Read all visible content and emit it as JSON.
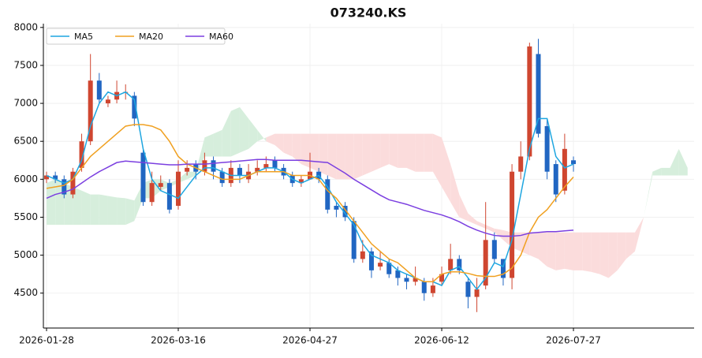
{
  "chart_data": {
    "type": "candlestick",
    "title": "073240.KS",
    "categories": [
      "2026-01-28",
      null,
      null,
      null,
      null,
      null,
      null,
      null,
      null,
      null,
      null,
      null,
      null,
      null,
      null,
      "2026-03-16",
      null,
      null,
      null,
      null,
      null,
      null,
      null,
      null,
      null,
      null,
      null,
      null,
      null,
      null,
      "2026-04-27",
      null,
      null,
      null,
      null,
      null,
      null,
      null,
      null,
      null,
      null,
      null,
      null,
      null,
      null,
      "2026-06-12",
      null,
      null,
      null,
      null,
      null,
      null,
      null,
      null,
      null,
      null,
      null,
      null,
      null,
      null,
      "2026-07-27",
      null,
      null,
      null,
      null,
      null,
      null,
      null,
      null,
      null,
      null,
      null,
      null,
      null
    ],
    "xlim": [
      -0.36,
      73.74
    ],
    "ylim": [
      4040,
      8050
    ],
    "yticks": [
      4500,
      5000,
      5500,
      6000,
      6500,
      7000,
      7500,
      8000
    ],
    "grid": true,
    "up_color": "#cf4630",
    "down_color": "#2166c2",
    "open": [
      6000,
      6050,
      6000,
      5800,
      6150,
      6500,
      7300,
      7000,
      7050,
      7150,
      7100,
      6350,
      5700,
      5900,
      5950,
      5650,
      6100,
      6200,
      6100,
      6250,
      6100,
      5950,
      6150,
      6000,
      6100,
      6150,
      6250,
      6150,
      6050,
      5950,
      6000,
      6100,
      6000,
      5650,
      5650,
      5450,
      4950,
      5050,
      4850,
      4900,
      4800,
      4700,
      4650,
      4650,
      4500,
      4650,
      4800,
      4950,
      4650,
      4450,
      4600,
      5200,
      4950,
      4700,
      6100,
      6300,
      7650,
      6700,
      6200,
      5850,
      6250,
      null,
      null,
      null,
      null,
      null,
      null,
      null,
      null,
      null,
      null,
      null,
      null,
      null
    ],
    "high": [
      6100,
      6100,
      6050,
      6150,
      6600,
      7650,
      7400,
      7100,
      7300,
      7250,
      7150,
      6400,
      6100,
      6050,
      6000,
      6250,
      6250,
      6250,
      6350,
      6300,
      6150,
      6250,
      6200,
      6200,
      6250,
      6300,
      6300,
      6200,
      6100,
      6050,
      6350,
      6150,
      6050,
      5700,
      5700,
      5500,
      5200,
      5100,
      5050,
      4950,
      4850,
      4750,
      4850,
      4700,
      4700,
      4850,
      5150,
      5000,
      4700,
      4700,
      5700,
      5300,
      4950,
      6200,
      6500,
      7800,
      7850,
      6800,
      6250,
      6600,
      6300,
      null,
      null,
      null,
      null,
      null,
      null,
      null,
      null,
      null,
      null,
      null,
      null,
      null
    ],
    "low": [
      5950,
      5950,
      5750,
      5750,
      6100,
      6450,
      7000,
      6950,
      7000,
      7050,
      6700,
      5650,
      5650,
      5850,
      5550,
      5600,
      6050,
      6000,
      6050,
      6000,
      5900,
      5900,
      5950,
      5950,
      6050,
      6100,
      6100,
      6000,
      5900,
      5900,
      6000,
      5950,
      5550,
      5500,
      5450,
      4900,
      4900,
      4700,
      4800,
      4700,
      4600,
      4550,
      4600,
      4400,
      4450,
      4600,
      4750,
      4750,
      4300,
      4250,
      4550,
      4900,
      4600,
      4550,
      6000,
      6250,
      6550,
      6000,
      5700,
      5800,
      6100,
      null,
      null,
      null,
      null,
      null,
      null,
      null,
      null,
      null,
      null,
      null,
      null,
      null
    ],
    "close": [
      6050,
      6000,
      5800,
      6100,
      6500,
      7300,
      7050,
      7050,
      7150,
      7150,
      6800,
      5700,
      5950,
      5950,
      5600,
      6100,
      6150,
      6100,
      6250,
      6100,
      5950,
      6150,
      6050,
      6100,
      6150,
      6200,
      6150,
      6050,
      5950,
      6000,
      6100,
      6000,
      5600,
      5600,
      5500,
      4950,
      5050,
      4800,
      4900,
      4750,
      4700,
      4650,
      4700,
      4500,
      4600,
      4750,
      4950,
      4800,
      4450,
      4550,
      5200,
      4950,
      4700,
      6100,
      6300,
      7750,
      6600,
      6100,
      5800,
      6400,
      6200,
      null,
      null,
      null,
      null,
      null,
      null,
      null,
      null,
      null,
      null,
      null,
      null,
      null
    ],
    "series": [
      {
        "name": "MA5",
        "color": "#1ea6e0",
        "values": [
          6050,
          6000,
          5950,
          6000,
          6250,
          6700,
          7000,
          7150,
          7100,
          7150,
          7050,
          6400,
          6000,
          5850,
          5800,
          5750,
          5900,
          6050,
          6150,
          6150,
          6100,
          6050,
          6050,
          6050,
          6100,
          6150,
          6150,
          6100,
          6000,
          5950,
          6000,
          6050,
          5900,
          5700,
          5550,
          5400,
          5150,
          5000,
          4950,
          4900,
          4800,
          4750,
          4700,
          4650,
          4650,
          4600,
          4800,
          4850,
          4700,
          4550,
          4700,
          4900,
          4850,
          5200,
          5800,
          6400,
          6800,
          6800,
          6300,
          6150,
          6200,
          null,
          null,
          null,
          null,
          null,
          null,
          null,
          null,
          null,
          null,
          null,
          null,
          null
        ]
      },
      {
        "name": "MA20",
        "color": "#f0a020",
        "values": [
          5880,
          5900,
          5920,
          6000,
          6150,
          6300,
          6400,
          6500,
          6600,
          6700,
          6720,
          6720,
          6700,
          6650,
          6500,
          6300,
          6200,
          6150,
          6100,
          6050,
          6000,
          6000,
          6000,
          6050,
          6100,
          6100,
          6100,
          6100,
          6050,
          6050,
          6050,
          6000,
          5850,
          5750,
          5600,
          5450,
          5300,
          5150,
          5050,
          4950,
          4900,
          4800,
          4700,
          4650,
          4650,
          4750,
          4780,
          4780,
          4760,
          4730,
          4720,
          4720,
          4750,
          4830,
          5000,
          5300,
          5500,
          5600,
          5750,
          5900,
          6030,
          null,
          null,
          null,
          null,
          null,
          null,
          null,
          null,
          null,
          null,
          null,
          null,
          null
        ]
      },
      {
        "name": "MA60",
        "color": "#7b3fe0",
        "values": [
          5750,
          5800,
          5830,
          5870,
          5950,
          6030,
          6100,
          6160,
          6220,
          6240,
          6230,
          6220,
          6210,
          6200,
          6190,
          6190,
          6200,
          6200,
          6200,
          6210,
          6220,
          6230,
          6240,
          6250,
          6260,
          6260,
          6250,
          6250,
          6250,
          6250,
          6240,
          6230,
          6220,
          6150,
          6080,
          6000,
          5930,
          5860,
          5790,
          5730,
          5700,
          5670,
          5630,
          5590,
          5560,
          5530,
          5490,
          5440,
          5380,
          5330,
          5290,
          5260,
          5250,
          5250,
          5260,
          5290,
          5300,
          5310,
          5310,
          5320,
          5330,
          null,
          null,
          null,
          null,
          null,
          null,
          null,
          null,
          null,
          null,
          null,
          null,
          null
        ]
      }
    ],
    "cloud": {
      "up_color": "#d6eedc",
      "down_color": "#fbdcdc",
      "span_a": [
        5950,
        6000,
        5950,
        5900,
        5850,
        5800,
        5800,
        5780,
        5760,
        5750,
        5720,
        5950,
        6000,
        6000,
        5950,
        6000,
        6100,
        6100,
        6550,
        6600,
        6650,
        6900,
        6950,
        6800,
        6650,
        6500,
        6450,
        6350,
        6300,
        6200,
        6150,
        6100,
        6050,
        6000,
        6000,
        6000,
        6050,
        6100,
        6150,
        6200,
        6150,
        6150,
        6100,
        6100,
        6100,
        5900,
        5700,
        5500,
        5450,
        5400,
        5350,
        5300,
        5200,
        5100,
        5050,
        5000,
        4950,
        4850,
        4800,
        4820,
        4800,
        4800,
        4780,
        4750,
        4700,
        4800,
        4950,
        5050,
        5500,
        6100,
        6150,
        6150,
        6400,
        6150
      ],
      "span_b": [
        5400,
        5400,
        5400,
        5400,
        5400,
        5400,
        5400,
        5400,
        5400,
        5400,
        5450,
        5750,
        5750,
        5850,
        5900,
        5950,
        6000,
        6050,
        6300,
        6300,
        6300,
        6300,
        6350,
        6400,
        6500,
        6550,
        6600,
        6600,
        6600,
        6600,
        6600,
        6600,
        6600,
        6600,
        6600,
        6600,
        6600,
        6600,
        6600,
        6600,
        6600,
        6600,
        6600,
        6600,
        6600,
        6550,
        6200,
        5800,
        5550,
        5450,
        5400,
        5350,
        5330,
        5300,
        5300,
        5300,
        5300,
        5300,
        5300,
        5300,
        5300,
        5300,
        5300,
        5300,
        5300,
        5300,
        5300,
        5300,
        5500,
        6050,
        6050,
        6050,
        6050,
        6050
      ]
    }
  }
}
